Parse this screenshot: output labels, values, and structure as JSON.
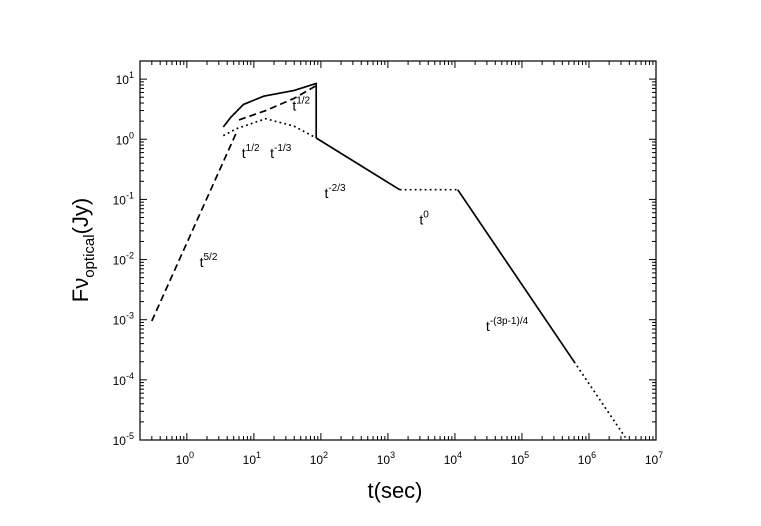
{
  "chart_data": {
    "type": "line",
    "xlabel": "t(sec)",
    "ylabel": {
      "main": "Fν",
      "sub": "optical",
      "suffix": "(Jy)"
    },
    "xscale": "log",
    "yscale": "log",
    "xlim": [
      0.2,
      10000000
    ],
    "ylim": [
      1e-05,
      20
    ],
    "grid": false,
    "x_ticks": [
      {
        "base": "10",
        "exp": "0"
      },
      {
        "base": "10",
        "exp": "1"
      },
      {
        "base": "10",
        "exp": "2"
      },
      {
        "base": "10",
        "exp": "3"
      },
      {
        "base": "10",
        "exp": "4"
      },
      {
        "base": "10",
        "exp": "5"
      },
      {
        "base": "10",
        "exp": "6"
      },
      {
        "base": "10",
        "exp": "7"
      }
    ],
    "y_ticks": [
      {
        "base": "10",
        "exp": "-5"
      },
      {
        "base": "10",
        "exp": "-4"
      },
      {
        "base": "10",
        "exp": "-3"
      },
      {
        "base": "10",
        "exp": "-2"
      },
      {
        "base": "10",
        "exp": "-1"
      },
      {
        "base": "10",
        "exp": "0"
      },
      {
        "base": "10",
        "exp": "1"
      }
    ],
    "series": [
      {
        "style": "dashed",
        "x": [
          0.3,
          5.5
        ],
        "y": [
          0.00095,
          1.3
        ]
      },
      {
        "style": "solid",
        "x": [
          3.5,
          4.5,
          7,
          14,
          40,
          85,
          85
        ],
        "y": [
          1.6,
          2.3,
          3.8,
          5.2,
          6.5,
          8.5,
          1.05
        ]
      },
      {
        "style": "dashed",
        "x": [
          6,
          15,
          40,
          85
        ],
        "y": [
          2.1,
          3.0,
          4.8,
          7.8
        ]
      },
      {
        "style": "dotted",
        "x": [
          3.5,
          5.5,
          15,
          40,
          85
        ],
        "y": [
          1.15,
          1.5,
          2.2,
          1.65,
          1.05
        ]
      },
      {
        "style": "solid",
        "x": [
          85,
          1500
        ],
        "y": [
          1.05,
          0.145
        ]
      },
      {
        "style": "dotted",
        "x": [
          1500,
          11000
        ],
        "y": [
          0.145,
          0.145
        ]
      },
      {
        "style": "solid",
        "x": [
          11000,
          600000
        ],
        "y": [
          0.145,
          0.0002
        ]
      },
      {
        "style": "dotted",
        "x": [
          600000,
          3500000
        ],
        "y": [
          0.0002,
          1.1e-05
        ]
      }
    ],
    "annotations": [
      {
        "base": "t",
        "exp": "5/2",
        "x": 1.55,
        "y": 0.0075
      },
      {
        "base": "t",
        "exp": "1/2",
        "x": 6.6,
        "y": 0.49
      },
      {
        "base": "t",
        "exp": "-1/3",
        "x": 17.5,
        "y": 0.49
      },
      {
        "base": "t",
        "exp": "1/2",
        "x": 37.5,
        "y": 3.0
      },
      {
        "base": "t",
        "exp": "-2/3",
        "x": 113,
        "y": 0.105
      },
      {
        "base": "t",
        "exp": "0",
        "x": 2950,
        "y": 0.038
      },
      {
        "base": "t",
        "exp": "-(3p-1)/4",
        "x": 29000,
        "y": 0.00065
      }
    ]
  }
}
